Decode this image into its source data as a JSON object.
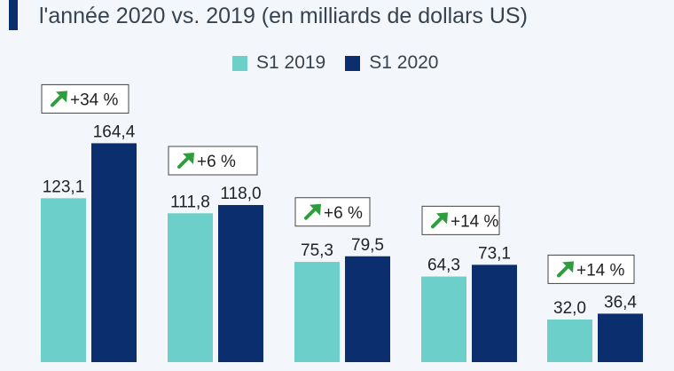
{
  "header": {
    "title_partial": "l'année 2020 vs. 2019 (en milliards de dollars US)",
    "accent_color": "#0b2f6e"
  },
  "chart_data": {
    "type": "bar",
    "title": "l'année 2020 vs. 2019 (en milliards de dollars US)",
    "categories": [
      "",
      "",
      "",
      "",
      ""
    ],
    "series": [
      {
        "name": "S1 2019",
        "color": "#6dcfca",
        "values": [
          123.1,
          111.8,
          75.3,
          64.3,
          32.0
        ],
        "labels": [
          "123,1",
          "111,8",
          "75,3",
          "64,3",
          "32,0"
        ]
      },
      {
        "name": "S1 2020",
        "color": "#0b2f6e",
        "values": [
          164.4,
          118.0,
          79.5,
          73.1,
          36.4
        ],
        "labels": [
          "164,4",
          "118,0",
          "79,5",
          "73,1",
          "36,4"
        ]
      }
    ],
    "changes": [
      "+34 %",
      "+6 %",
      "+6 %",
      "+14 %",
      "+14 %"
    ],
    "change_icon": "arrow-up-right-icon",
    "change_icon_color": "#2e9e3c",
    "legend_position": "top-center",
    "grid": false
  }
}
